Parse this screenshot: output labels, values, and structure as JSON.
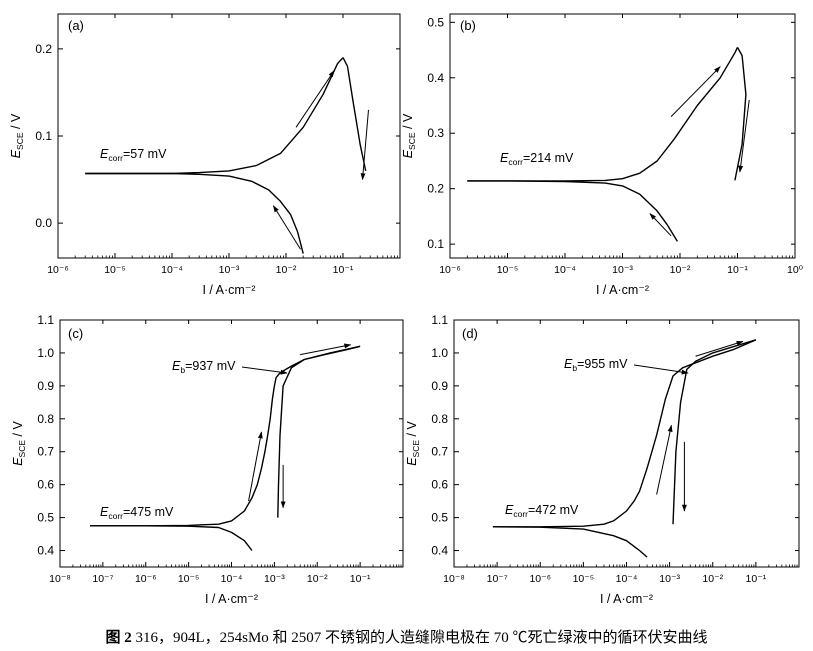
{
  "caption": {
    "label": "图 2",
    "text": "316，904L，254sMo 和 2507 不锈钢的人造缝隙电极在 70 ℃死亡绿液中的循环伏安曲线"
  },
  "colors": {
    "axis": "#000000",
    "curve": "#000000",
    "background": "#ffffff"
  },
  "chart_data": [
    {
      "type": "line",
      "panel_label": "(a)",
      "xlabel": "I / A·cm⁻²",
      "ylabel": "E_SCE / V",
      "x_scale": "log",
      "xlim": [
        1e-06,
        1
      ],
      "ylim": [
        -0.04,
        0.24
      ],
      "x_ticks": [
        "10⁻⁶",
        "10⁻⁵",
        "10⁻⁴",
        "10⁻³",
        "10⁻²",
        "10⁻¹"
      ],
      "y_ticks": [
        "0.0",
        "0.1",
        "0.2"
      ],
      "annotations": [
        {
          "prefix": "E",
          "sub": "corr",
          "text": "=57 mV"
        }
      ],
      "series": [
        {
          "x": [
            3e-06,
            1e-05,
            3e-05,
            0.0001,
            0.0003,
            0.001,
            0.003,
            0.008,
            0.02,
            0.045,
            0.08,
            0.1
          ],
          "y": [
            0.057,
            0.057,
            0.057,
            0.057,
            0.058,
            0.06,
            0.066,
            0.08,
            0.11,
            0.148,
            0.183,
            0.19
          ]
        },
        {
          "x": [
            0.1,
            0.12,
            0.15,
            0.2,
            0.25
          ],
          "y": [
            0.19,
            0.18,
            0.14,
            0.09,
            0.06
          ]
        },
        {
          "x": [
            3e-06,
            1e-05,
            3e-05,
            0.0001,
            0.0003,
            0.001,
            0.0025,
            0.005,
            0.008,
            0.012,
            0.016,
            0.02
          ],
          "y": [
            0.057,
            0.057,
            0.057,
            0.057,
            0.056,
            0.054,
            0.048,
            0.038,
            0.025,
            0.01,
            -0.01,
            -0.035
          ]
        }
      ],
      "arrows": [
        {
          "from": [
            0.015,
            0.11
          ],
          "to": [
            0.07,
            0.175
          ]
        },
        {
          "from": [
            0.28,
            0.13
          ],
          "to": [
            0.22,
            0.05
          ]
        },
        {
          "from": [
            0.018,
            -0.03
          ],
          "to": [
            0.006,
            0.02
          ]
        }
      ]
    },
    {
      "type": "line",
      "panel_label": "(b)",
      "xlabel": "I / A·cm⁻²",
      "ylabel": "E_SCE / V",
      "x_scale": "log",
      "xlim": [
        1e-06,
        1
      ],
      "ylim": [
        0.075,
        0.515
      ],
      "x_ticks": [
        "10⁻⁶",
        "10⁻⁵",
        "10⁻⁴",
        "10⁻³",
        "10⁻²",
        "10⁻¹",
        "10⁰"
      ],
      "y_ticks": [
        "0.1",
        "0.2",
        "0.3",
        "0.4",
        "0.5"
      ],
      "annotations": [
        {
          "prefix": "E",
          "sub": "corr",
          "text": "=214 mV"
        }
      ],
      "series": [
        {
          "x": [
            2e-06,
            1e-05,
            0.0001,
            0.0005,
            0.001,
            0.002,
            0.004,
            0.008,
            0.02,
            0.05,
            0.09,
            0.1
          ],
          "y": [
            0.214,
            0.214,
            0.214,
            0.215,
            0.218,
            0.228,
            0.25,
            0.29,
            0.35,
            0.4,
            0.445,
            0.455
          ]
        },
        {
          "x": [
            0.1,
            0.12,
            0.14,
            0.12,
            0.09
          ],
          "y": [
            0.455,
            0.44,
            0.37,
            0.28,
            0.215
          ]
        },
        {
          "x": [
            2e-06,
            1e-05,
            0.0001,
            0.0005,
            0.001,
            0.002,
            0.004,
            0.006,
            0.009
          ],
          "y": [
            0.214,
            0.214,
            0.213,
            0.21,
            0.205,
            0.19,
            0.16,
            0.135,
            0.105
          ]
        }
      ],
      "arrows": [
        {
          "from": [
            0.007,
            0.33
          ],
          "to": [
            0.05,
            0.42
          ]
        },
        {
          "from": [
            0.16,
            0.36
          ],
          "to": [
            0.11,
            0.23
          ]
        },
        {
          "from": [
            0.007,
            0.115
          ],
          "to": [
            0.003,
            0.155
          ]
        }
      ]
    },
    {
      "type": "line",
      "panel_label": "(c)",
      "xlabel": "I / A·cm⁻²",
      "ylabel": "E_SCE / V",
      "x_scale": "log",
      "xlim": [
        1e-08,
        1
      ],
      "ylim": [
        0.35,
        1.1
      ],
      "x_ticks": [
        "10⁻⁸",
        "10⁻⁷",
        "10⁻⁶",
        "10⁻⁵",
        "10⁻⁴",
        "10⁻³",
        "10⁻²",
        "10⁻¹"
      ],
      "y_ticks": [
        "0.4",
        "0.5",
        "0.6",
        "0.7",
        "0.8",
        "0.9",
        "1.0",
        "1.1"
      ],
      "annotations": [
        {
          "prefix": "E",
          "sub": "corr",
          "text": "=475 mV"
        },
        {
          "prefix": "E",
          "sub": "b",
          "text": "=937 mV"
        }
      ],
      "series": [
        {
          "x": [
            5e-08,
            1e-07,
            1e-06,
            1e-05,
            2e-05,
            5e-05,
            0.0001,
            0.0002,
            0.0003,
            0.0004,
            0.0005,
            0.0006,
            0.0007,
            0.0008,
            0.0009,
            0.001,
            0.0011,
            0.0013,
            0.0016,
            0.0025,
            0.005,
            0.015,
            0.05,
            0.1
          ],
          "y": [
            0.475,
            0.475,
            0.475,
            0.476,
            0.478,
            0.48,
            0.49,
            0.52,
            0.56,
            0.6,
            0.65,
            0.7,
            0.75,
            0.8,
            0.86,
            0.9,
            0.925,
            0.937,
            0.945,
            0.96,
            0.98,
            0.995,
            1.01,
            1.02
          ]
        },
        {
          "x": [
            0.1,
            0.02,
            0.005,
            0.0025,
            0.0016,
            0.00135,
            0.00125,
            0.0012
          ],
          "y": [
            1.02,
            1.0,
            0.98,
            0.955,
            0.9,
            0.75,
            0.6,
            0.5
          ]
        },
        {
          "x": [
            5e-08,
            1e-06,
            1e-05,
            5e-05,
            0.0001,
            0.0002,
            0.0003
          ],
          "y": [
            0.475,
            0.475,
            0.474,
            0.47,
            0.455,
            0.43,
            0.4
          ]
        }
      ],
      "arrows": [
        {
          "from": [
            0.00025,
            0.55
          ],
          "to": [
            0.0005,
            0.76
          ]
        },
        {
          "from": [
            0.004,
            0.995
          ],
          "to": [
            0.06,
            1.025
          ]
        },
        {
          "from": [
            0.0016,
            0.66
          ],
          "to": [
            0.0016,
            0.53
          ]
        }
      ]
    },
    {
      "type": "line",
      "panel_label": "(d)",
      "xlabel": "I / A·cm⁻²",
      "ylabel": "E_SCE / V",
      "x_scale": "log",
      "xlim": [
        1e-08,
        1
      ],
      "ylim": [
        0.35,
        1.1
      ],
      "x_ticks": [
        "10⁻⁸",
        "10⁻⁷",
        "10⁻⁶",
        "10⁻⁵",
        "10⁻⁴",
        "10⁻³",
        "10⁻²",
        "10⁻¹"
      ],
      "y_ticks": [
        "0.4",
        "0.5",
        "0.6",
        "0.7",
        "0.8",
        "0.9",
        "1.0",
        "1.1"
      ],
      "annotations": [
        {
          "prefix": "E",
          "sub": "corr",
          "text": "=472 mV"
        },
        {
          "prefix": "E",
          "sub": "b",
          "text": "=955 mV"
        }
      ],
      "series": [
        {
          "x": [
            8e-08,
            1e-06,
            1e-05,
            3e-05,
            5e-05,
            0.0001,
            0.00015,
            0.0002,
            0.0003,
            0.0005,
            0.0008,
            0.0012,
            0.002,
            0.004,
            0.01,
            0.03,
            0.1
          ],
          "y": [
            0.472,
            0.472,
            0.474,
            0.48,
            0.49,
            0.52,
            0.55,
            0.58,
            0.65,
            0.75,
            0.86,
            0.93,
            0.955,
            0.97,
            0.99,
            1.01,
            1.04
          ]
        },
        {
          "x": [
            0.1,
            0.01,
            0.004,
            0.0025,
            0.0018,
            0.0014,
            0.0012
          ],
          "y": [
            1.04,
            1.0,
            0.975,
            0.95,
            0.85,
            0.7,
            0.48
          ]
        },
        {
          "x": [
            8e-08,
            1e-06,
            1e-05,
            5e-05,
            0.0001,
            0.0002,
            0.0003
          ],
          "y": [
            0.472,
            0.471,
            0.465,
            0.445,
            0.43,
            0.4,
            0.38
          ]
        }
      ],
      "arrows": [
        {
          "from": [
            0.0005,
            0.57
          ],
          "to": [
            0.0011,
            0.78
          ]
        },
        {
          "from": [
            0.004,
            0.99
          ],
          "to": [
            0.05,
            1.035
          ]
        },
        {
          "from": [
            0.0022,
            0.73
          ],
          "to": [
            0.0022,
            0.52
          ]
        }
      ]
    }
  ]
}
